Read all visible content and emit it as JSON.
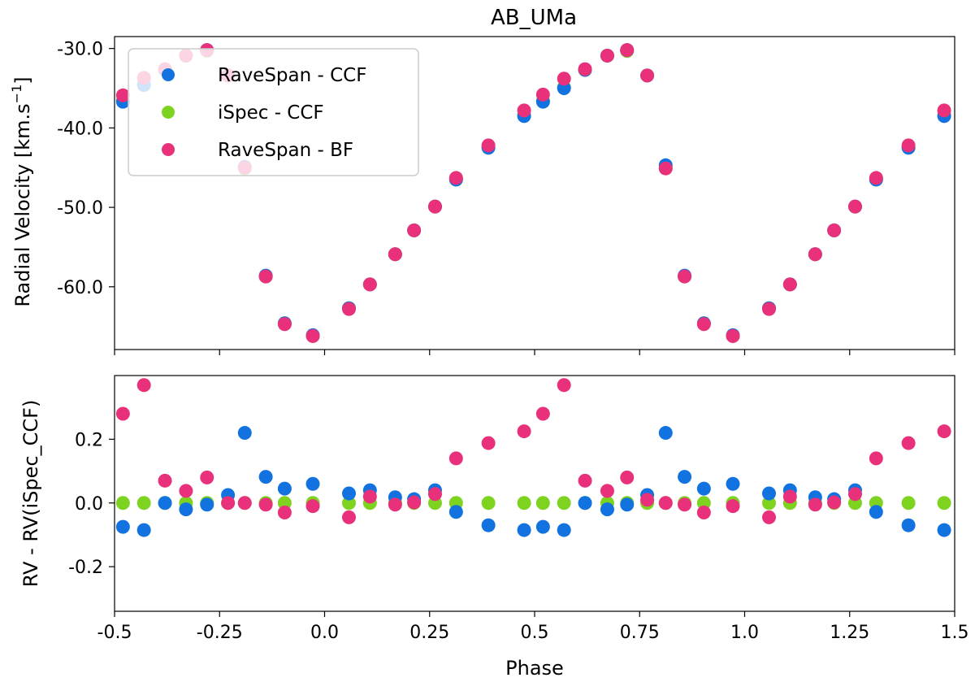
{
  "chart_data": [
    {
      "type": "scatter",
      "title": "AB_UMa",
      "xlabel": "",
      "ylabel": "Radial Velocity [km.s",
      "ylabel_sup": "−1",
      "ylabel_suffix": "]",
      "xlim": [
        -0.5,
        1.5
      ],
      "ylim": [
        -67.9,
        -28.5
      ],
      "yticks": [
        -30,
        -40,
        -50,
        -60
      ],
      "ytick_labels": [
        "-30.0",
        "-40.0",
        "-50.0",
        "-60.0"
      ],
      "xticks": [
        -0.5,
        -0.25,
        0,
        0.25,
        0.5,
        0.75,
        1.0,
        1.25,
        1.5
      ],
      "legend_position": "top-left",
      "series": [
        {
          "name": "RaveSpan - CCF",
          "color": "#1273e0",
          "x": [
            -0.48,
            -0.43,
            -0.38,
            -0.33,
            -0.28,
            -0.23,
            -0.19,
            -0.14,
            -0.095,
            -0.028,
            0.058,
            0.108,
            0.168,
            0.213,
            0.263,
            0.313,
            0.39,
            0.475,
            0.52,
            0.57,
            0.62,
            0.673,
            0.72,
            0.768,
            0.812,
            0.857,
            0.903,
            0.972,
            1.058,
            1.108,
            1.168,
            1.213,
            1.263,
            1.313,
            1.39,
            1.475
          ],
          "y": [
            -36.7,
            -34.6,
            -32.7,
            -30.9,
            -30.2,
            -33.4,
            -44.9,
            -58.6,
            -64.6,
            -66.1,
            -62.7,
            -59.7,
            -55.9,
            -52.9,
            -49.9,
            -46.5,
            -42.5,
            -38.5,
            -36.7,
            -35.0,
            -32.7,
            -30.9,
            -30.2,
            -33.4,
            -44.7,
            -58.6,
            -64.6,
            -66.1,
            -62.7,
            -59.7,
            -55.9,
            -52.9,
            -49.9,
            -46.5,
            -42.5,
            -38.5
          ]
        },
        {
          "name": "iSpec - CCF",
          "color": "#7ed321",
          "x": [
            -0.48,
            -0.43,
            -0.38,
            -0.33,
            -0.28,
            -0.23,
            -0.19,
            -0.14,
            -0.095,
            -0.028,
            0.058,
            0.108,
            0.168,
            0.213,
            0.263,
            0.313,
            0.39,
            0.475,
            0.52,
            0.57,
            0.62,
            0.673,
            0.72,
            0.768,
            0.812,
            0.857,
            0.903,
            0.972,
            1.058,
            1.108,
            1.168,
            1.213,
            1.263,
            1.313,
            1.39,
            1.475
          ],
          "y": [
            -36.6,
            -34.5,
            -32.7,
            -30.9,
            -30.3,
            -33.4,
            -45.1,
            -58.7,
            -64.6,
            -66.2,
            -62.7,
            -59.7,
            -55.9,
            -52.9,
            -49.9,
            -46.5,
            -42.4,
            -38.4,
            -36.6,
            -34.9,
            -32.7,
            -30.9,
            -30.3,
            -33.4,
            -45.0,
            -58.7,
            -64.6,
            -66.2,
            -62.7,
            -59.7,
            -55.9,
            -52.9,
            -49.9,
            -46.5,
            -42.4,
            -38.4
          ]
        },
        {
          "name": "RaveSpan - BF",
          "color": "#e8317a",
          "x": [
            -0.48,
            -0.43,
            -0.38,
            -0.33,
            -0.28,
            -0.23,
            -0.19,
            -0.14,
            -0.095,
            -0.028,
            0.058,
            0.108,
            0.168,
            0.213,
            0.263,
            0.313,
            0.39,
            0.475,
            0.52,
            0.57,
            0.62,
            0.673,
            0.72,
            0.768,
            0.812,
            0.857,
            0.903,
            0.972,
            1.058,
            1.108,
            1.168,
            1.213,
            1.263,
            1.313,
            1.39,
            1.475
          ],
          "y": [
            -35.9,
            -33.7,
            -32.6,
            -30.9,
            -30.2,
            -33.4,
            -45.0,
            -58.7,
            -64.7,
            -66.2,
            -62.8,
            -59.7,
            -55.9,
            -52.9,
            -49.9,
            -46.3,
            -42.2,
            -37.8,
            -35.8,
            -33.8,
            -32.6,
            -30.9,
            -30.2,
            -33.4,
            -45.1,
            -58.7,
            -64.7,
            -66.2,
            -62.8,
            -59.7,
            -55.9,
            -52.9,
            -49.9,
            -46.3,
            -42.2,
            -37.8
          ]
        }
      ]
    },
    {
      "type": "scatter",
      "title": "",
      "xlabel": "Phase",
      "ylabel": "RV - RV(iSpec_CCF)",
      "xlim": [
        -0.5,
        1.5
      ],
      "ylim": [
        -0.34,
        0.4
      ],
      "yticks": [
        0.2,
        0.0,
        -0.2
      ],
      "ytick_labels": [
        "0.2",
        "0.0",
        "-0.2"
      ],
      "xticks": [
        -0.5,
        -0.25,
        0,
        0.25,
        0.5,
        0.75,
        1.0,
        1.25,
        1.5
      ],
      "xtick_labels": [
        "-0.5",
        "-0.25",
        "0.0",
        "0.25",
        "0.5",
        "0.75",
        "1.0",
        "1.25",
        "1.5"
      ],
      "series": [
        {
          "name": "RaveSpan - CCF",
          "color": "#1273e0",
          "x": [
            -0.48,
            -0.43,
            -0.38,
            -0.33,
            -0.28,
            -0.23,
            -0.19,
            -0.14,
            -0.095,
            -0.028,
            0.058,
            0.108,
            0.168,
            0.213,
            0.263,
            0.313,
            0.39,
            0.475,
            0.52,
            0.57,
            0.62,
            0.673,
            0.72,
            0.768,
            0.812,
            0.857,
            0.903,
            0.972,
            1.058,
            1.108,
            1.168,
            1.213,
            1.263,
            1.313,
            1.39,
            1.475
          ],
          "y": [
            -0.075,
            -0.085,
            0.0,
            -0.02,
            -0.005,
            0.025,
            0.22,
            0.082,
            0.045,
            0.06,
            0.03,
            0.04,
            0.018,
            0.012,
            0.04,
            -0.028,
            -0.07,
            -0.085,
            -0.075,
            -0.085,
            0.0,
            -0.02,
            -0.005,
            0.025,
            0.22,
            0.082,
            0.045,
            0.06,
            0.03,
            0.04,
            0.018,
            0.012,
            0.04,
            -0.028,
            -0.07,
            -0.085
          ]
        },
        {
          "name": "iSpec - CCF",
          "color": "#7ed321",
          "x": [
            -0.48,
            -0.43,
            -0.38,
            -0.33,
            -0.28,
            -0.23,
            -0.19,
            -0.14,
            -0.095,
            -0.028,
            0.058,
            0.108,
            0.168,
            0.213,
            0.263,
            0.313,
            0.39,
            0.475,
            0.52,
            0.57,
            0.62,
            0.673,
            0.72,
            0.768,
            0.812,
            0.857,
            0.903,
            0.972,
            1.058,
            1.108,
            1.168,
            1.213,
            1.263,
            1.313,
            1.39,
            1.475
          ],
          "y": [
            0,
            0,
            0,
            0,
            0,
            0,
            0,
            0,
            0,
            0,
            0,
            0,
            0,
            0,
            0,
            0,
            0,
            0,
            0,
            0,
            0,
            0,
            0,
            0,
            0,
            0,
            0,
            0,
            0,
            0,
            0,
            0,
            0,
            0,
            0,
            0
          ]
        },
        {
          "name": "RaveSpan - BF",
          "color": "#e8317a",
          "x": [
            -0.48,
            -0.43,
            -0.38,
            -0.33,
            -0.28,
            -0.23,
            -0.19,
            -0.14,
            -0.095,
            -0.028,
            0.058,
            0.108,
            0.168,
            0.213,
            0.263,
            0.313,
            0.39,
            0.475,
            0.52,
            0.57,
            0.62,
            0.673,
            0.72,
            0.768,
            0.812,
            0.857,
            0.903,
            0.972,
            1.058,
            1.108,
            1.168,
            1.213,
            1.263,
            1.313,
            1.39,
            1.475
          ],
          "y": [
            0.28,
            0.37,
            0.07,
            0.038,
            0.08,
            0.0,
            0.0,
            -0.005,
            -0.03,
            -0.01,
            -0.045,
            0.02,
            -0.005,
            0.002,
            0.028,
            0.14,
            0.188,
            0.225,
            0.28,
            0.37,
            0.07,
            0.038,
            0.08,
            0.01,
            0.0,
            -0.005,
            -0.03,
            -0.01,
            -0.045,
            0.02,
            -0.005,
            0.002,
            0.028,
            0.14,
            0.188,
            0.225
          ]
        }
      ]
    }
  ]
}
